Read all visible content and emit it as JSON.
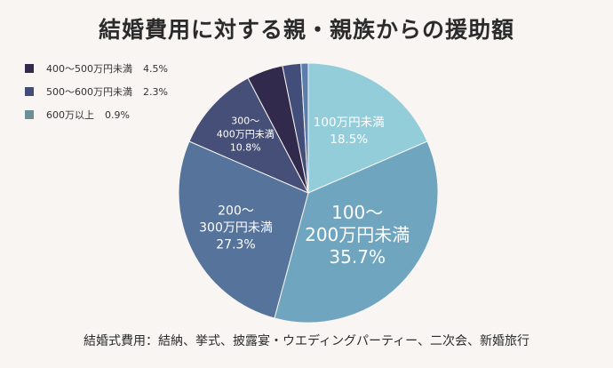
{
  "chart_data": {
    "type": "pie",
    "title": "結婚費用に対する親・親族からの援助額",
    "slices": [
      {
        "label": "100万円未満",
        "value": 18.5,
        "value_text": "18.5%",
        "color": "#93cdd9"
      },
      {
        "label": "100〜200万円未満",
        "value": 35.7,
        "value_text": "35.7%",
        "color": "#6fa5be"
      },
      {
        "label": "200〜300万円未満",
        "value": 27.3,
        "value_text": "27.3%",
        "color": "#56739b"
      },
      {
        "label": "300〜400万円未満",
        "value": 10.8,
        "value_text": "10.8%",
        "color": "#464f77"
      },
      {
        "label": "400〜500万円未満",
        "value": 4.5,
        "value_text": "4.5%",
        "color": "#322a4c"
      },
      {
        "label": "500〜600万円未満",
        "value": 2.3,
        "value_text": "2.3%",
        "color": "#434d7a"
      },
      {
        "label": "600万以上",
        "value": 0.9,
        "value_text": "0.9%",
        "color": "#5a7dab"
      }
    ],
    "slice_labels": [
      {
        "lines": [
          "100万円未満",
          "18.5%"
        ]
      },
      {
        "lines": [
          "100〜",
          "200万円未満",
          "35.7%"
        ]
      },
      {
        "lines": [
          "200〜",
          "300万円未満",
          "27.3%"
        ]
      },
      {
        "lines": [
          "300〜",
          "400万円未満",
          "10.8%"
        ]
      }
    ],
    "legend": [
      {
        "label": "400〜500万円未満",
        "value": "4.5%",
        "color": "#322a4c"
      },
      {
        "label": "500〜600万円未満",
        "value": "2.3%",
        "color": "#434d7a"
      },
      {
        "label": "600万以上",
        "value": "0.9%",
        "color": "#6a8f94"
      }
    ],
    "legend_position": "top-left",
    "start": "12 o'clock",
    "direction": "clockwise"
  },
  "footnote": "結婚式費用：結納、挙式、披露宴・ウエディングパーティー、二次会、新婚旅行"
}
